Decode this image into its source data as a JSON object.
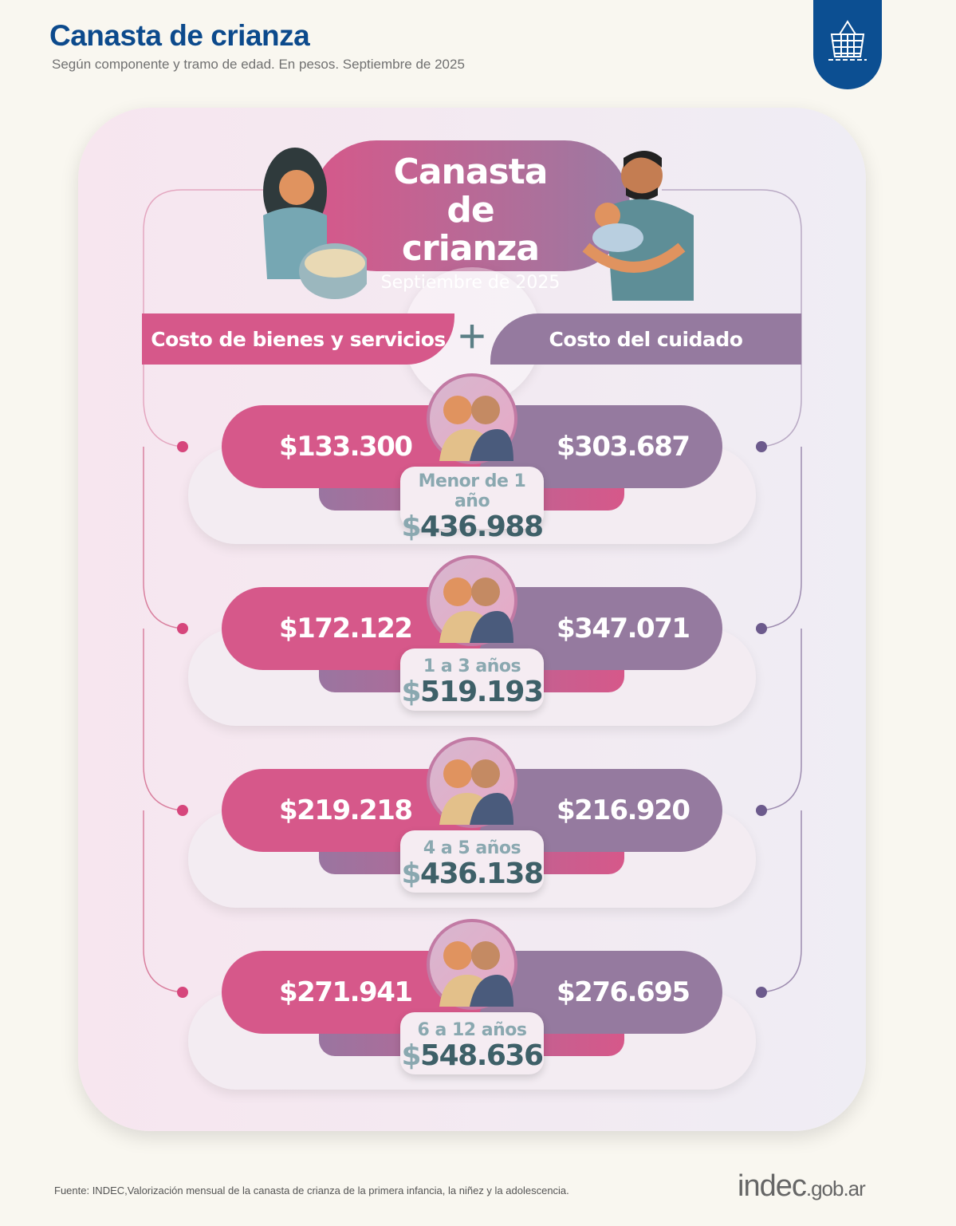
{
  "header": {
    "title": "Canasta de crianza",
    "subtitle": "Según componente y tramo de edad. En pesos. Septiembre de 2025",
    "badge_icon": "basket-icon"
  },
  "hero": {
    "title": "Canasta de crianza",
    "date": "Septiembre de 2025"
  },
  "categories": {
    "left": "Costo de bienes y servicios",
    "plus": "+",
    "right": "Costo del cuidado"
  },
  "rows": [
    {
      "age": "Menor de 1 año",
      "goods": "$133.300",
      "care": "$303.687",
      "total_symbol": "$",
      "total": "436.988"
    },
    {
      "age": "1 a 3 años",
      "goods": "$172.122",
      "care": "$347.071",
      "total_symbol": "$",
      "total": "519.193"
    },
    {
      "age": "4 a 5 años",
      "goods": "$219.218",
      "care": "$216.920",
      "total_symbol": "$",
      "total": "436.138"
    },
    {
      "age": "6 a 12 años",
      "goods": "$271.941",
      "care": "$276.695",
      "total_symbol": "$",
      "total": "548.636"
    }
  ],
  "colors": {
    "goods": "#d6588a",
    "care": "#957a9f",
    "brand": "#0c4a8c"
  },
  "footer": {
    "source": "Fuente: INDEC,Valorización mensual de la canasta de crianza de la primera infancia, la niñez y la adolescencia.",
    "logo": "indec",
    "logo_suffix": ".gob.ar"
  }
}
